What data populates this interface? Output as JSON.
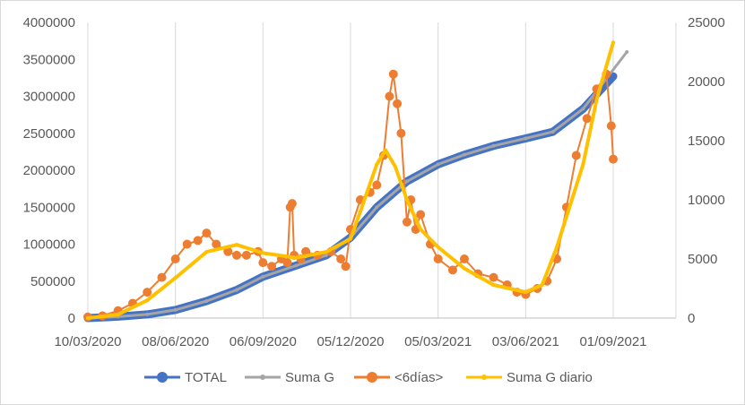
{
  "chart_data": {
    "type": "line",
    "title": "",
    "xlabel": "",
    "ylabel": "",
    "x_tick_labels": [
      "10/03/2020",
      "08/06/2020",
      "06/09/2020",
      "05/12/2020",
      "05/03/2021",
      "03/06/2021",
      "01/09/2021"
    ],
    "y_left": {
      "ylim": [
        0,
        4000000
      ],
      "ticks": [
        "0",
        "500000",
        "1000000",
        "1500000",
        "2000000",
        "2500000",
        "3000000",
        "3500000",
        "4000000"
      ]
    },
    "y_right": {
      "ylim": [
        0,
        25000
      ],
      "ticks": [
        "0",
        "5000",
        "10000",
        "15000",
        "20000",
        "25000"
      ]
    },
    "grid": "vertical",
    "legend_position": "bottom",
    "series": [
      {
        "name": "TOTAL",
        "axis": "left",
        "color": "#4472c4",
        "x": [
          "10/03/2020",
          "10/04/2020",
          "10/05/2020",
          "08/06/2020",
          "10/07/2020",
          "10/08/2020",
          "06/09/2020",
          "10/10/2020",
          "10/11/2020",
          "05/12/2020",
          "01/01/2021",
          "01/02/2021",
          "05/03/2021",
          "01/04/2021",
          "01/05/2021",
          "03/06/2021",
          "01/07/2021",
          "01/08/2021",
          "01/09/2021"
        ],
        "values": [
          0,
          20000,
          50000,
          110000,
          230000,
          380000,
          560000,
          710000,
          850000,
          1090000,
          1500000,
          1850000,
          2080000,
          2210000,
          2330000,
          2430000,
          2520000,
          2830000,
          3270000
        ]
      },
      {
        "name": "Suma G",
        "axis": "left",
        "color": "#a5a5a5",
        "x": [
          "10/03/2020",
          "10/04/2020",
          "10/05/2020",
          "08/06/2020",
          "10/07/2020",
          "10/08/2020",
          "06/09/2020",
          "10/10/2020",
          "10/11/2020",
          "05/12/2020",
          "01/01/2021",
          "01/02/2021",
          "05/03/2021",
          "01/04/2021",
          "01/05/2021",
          "03/06/2021",
          "01/07/2021",
          "01/08/2021",
          "15/09/2021"
        ],
        "values": [
          0,
          20000,
          50000,
          110000,
          230000,
          380000,
          560000,
          710000,
          850000,
          1090000,
          1500000,
          1850000,
          2080000,
          2210000,
          2330000,
          2430000,
          2520000,
          2830000,
          3600000
        ]
      },
      {
        "name": "<6días>",
        "axis": "left",
        "color": "#ed7d31",
        "x": [
          "10/03/2020",
          "25/03/2020",
          "10/04/2020",
          "25/04/2020",
          "10/05/2020",
          "25/05/2020",
          "08/06/2020",
          "20/06/2020",
          "01/07/2020",
          "10/07/2020",
          "20/07/2020",
          "01/08/2020",
          "10/08/2020",
          "20/08/2020",
          "01/09/2020",
          "06/09/2020",
          "15/09/2020",
          "25/09/2020",
          "01/10/2020",
          "04/10/2020",
          "06/10/2020",
          "08/10/2020",
          "15/10/2020",
          "20/10/2020",
          "01/11/2020",
          "15/11/2020",
          "25/11/2020",
          "30/11/2020",
          "05/12/2020",
          "15/12/2020",
          "25/12/2020",
          "01/01/2021",
          "08/01/2021",
          "14/01/2021",
          "18/01/2021",
          "22/01/2021",
          "26/01/2021",
          "01/02/2021",
          "05/02/2021",
          "10/02/2021",
          "15/02/2021",
          "25/02/2021",
          "05/03/2021",
          "20/03/2021",
          "01/04/2021",
          "15/04/2021",
          "01/05/2021",
          "15/05/2021",
          "25/05/2021",
          "03/06/2021",
          "15/06/2021",
          "25/06/2021",
          "05/07/2021",
          "15/07/2021",
          "25/07/2021",
          "05/08/2021",
          "15/08/2021",
          "25/08/2021",
          "30/08/2021",
          "01/09/2021"
        ],
        "values": [
          15000,
          30000,
          100000,
          200000,
          350000,
          550000,
          800000,
          1000000,
          1050000,
          1150000,
          1000000,
          900000,
          850000,
          850000,
          900000,
          750000,
          700000,
          800000,
          750000,
          1500000,
          1550000,
          850000,
          800000,
          900000,
          850000,
          900000,
          800000,
          700000,
          1200000,
          1600000,
          1700000,
          1800000,
          2200000,
          3000000,
          3300000,
          2900000,
          2500000,
          1300000,
          1600000,
          1200000,
          1400000,
          1000000,
          800000,
          650000,
          800000,
          600000,
          550000,
          450000,
          350000,
          320000,
          400000,
          500000,
          800000,
          1500000,
          2200000,
          2700000,
          3100000,
          3300000,
          2600000,
          2150000
        ]
      },
      {
        "name": "Suma G diario",
        "axis": "right",
        "color": "#ffc000",
        "x": [
          "10/03/2020",
          "10/04/2020",
          "10/05/2020",
          "08/06/2020",
          "10/07/2020",
          "10/08/2020",
          "06/09/2020",
          "10/10/2020",
          "10/11/2020",
          "05/12/2020",
          "15/12/2020",
          "01/01/2021",
          "10/01/2021",
          "20/01/2021",
          "01/02/2021",
          "15/02/2021",
          "05/03/2021",
          "01/04/2021",
          "01/05/2021",
          "03/06/2021",
          "20/06/2021",
          "05/07/2021",
          "01/08/2021",
          "15/08/2021",
          "01/09/2021"
        ],
        "values": [
          0,
          300,
          1500,
          3400,
          5600,
          6200,
          5500,
          5100,
          5600,
          6700,
          9000,
          13000,
          14200,
          12800,
          10000,
          7500,
          6000,
          4200,
          2800,
          2200,
          2800,
          6000,
          13000,
          18500,
          23300
        ]
      }
    ]
  }
}
